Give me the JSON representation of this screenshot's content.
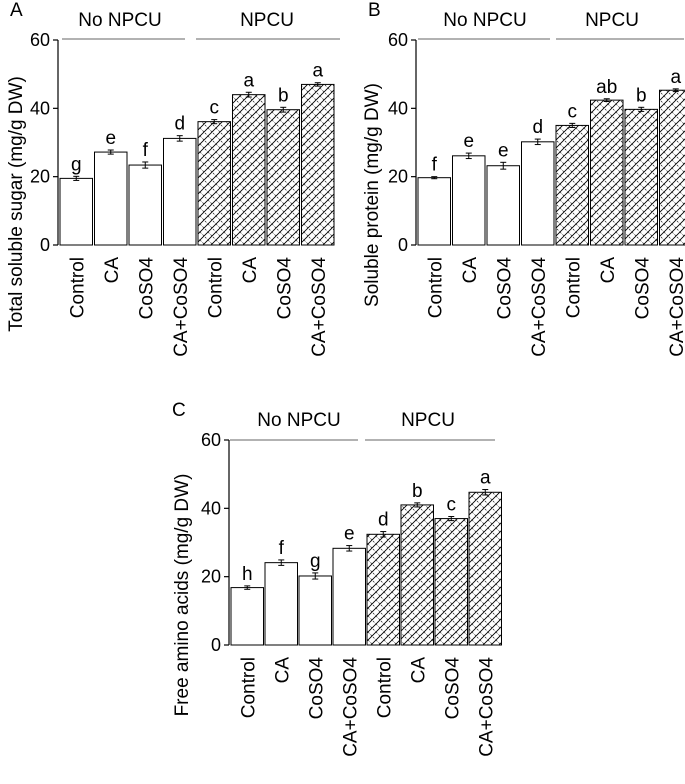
{
  "chart_data": [
    {
      "type": "bar",
      "panel": "A",
      "ylabel": "Total soluble sugar (mg/g DW)",
      "ylim": [
        0,
        60
      ],
      "yticks": [
        0,
        20,
        40,
        60
      ],
      "groups": [
        "No NPCU",
        "NPCU"
      ],
      "categories": [
        "Control",
        "CA",
        "CoSO4",
        "CA+CoSO4",
        "Control",
        "CA",
        "CoSO4",
        "CA+CoSO4"
      ],
      "values": [
        19.5,
        27.2,
        23.4,
        31.2,
        36.1,
        44.0,
        39.6,
        47.0
      ],
      "errors": [
        0.6,
        0.6,
        0.9,
        0.8,
        0.6,
        0.7,
        0.7,
        0.5
      ],
      "letters": [
        "g",
        "e",
        "f",
        "d",
        "c",
        "a",
        "b",
        "a"
      ],
      "fills": [
        "open",
        "open",
        "open",
        "open",
        "crosshatch",
        "crosshatch",
        "crosshatch",
        "crosshatch"
      ]
    },
    {
      "type": "bar",
      "panel": "B",
      "ylabel": "Soluble protein (mg/g DW)",
      "ylim": [
        0,
        60
      ],
      "yticks": [
        0,
        20,
        40,
        60
      ],
      "groups": [
        "No NPCU",
        "NPCU"
      ],
      "categories": [
        "Control",
        "CA",
        "CoSO4",
        "CA+CoSO4",
        "Control",
        "CA",
        "CoSO4",
        "CA+CoSO4"
      ],
      "values": [
        19.7,
        26.1,
        23.2,
        30.2,
        35.0,
        42.4,
        39.7,
        45.3
      ],
      "errors": [
        0.3,
        0.8,
        1.0,
        0.8,
        0.6,
        0.4,
        0.6,
        0.4
      ],
      "letters": [
        "f",
        "e",
        "e",
        "d",
        "c",
        "ab",
        "b",
        "a"
      ],
      "fills": [
        "open",
        "open",
        "open",
        "open",
        "crosshatch",
        "crosshatch",
        "crosshatch",
        "crosshatch"
      ]
    },
    {
      "type": "bar",
      "panel": "C",
      "ylabel": "Free amino acids (mg/g DW)",
      "ylim": [
        0,
        60
      ],
      "yticks": [
        0,
        20,
        40,
        60
      ],
      "groups": [
        "No NPCU",
        "NPCU"
      ],
      "categories": [
        "Control",
        "CA",
        "CoSO4",
        "CA+CoSO4",
        "Control",
        "CA",
        "CoSO4",
        "CA+CoSO4"
      ],
      "values": [
        16.8,
        24.1,
        20.2,
        28.3,
        32.4,
        41.0,
        37.0,
        44.7
      ],
      "errors": [
        0.5,
        0.8,
        0.9,
        0.8,
        0.8,
        0.6,
        0.6,
        0.8
      ],
      "letters": [
        "h",
        "f",
        "g",
        "e",
        "d",
        "b",
        "c",
        "a"
      ],
      "fills": [
        "open",
        "open",
        "open",
        "open",
        "crosshatch",
        "crosshatch",
        "crosshatch",
        "crosshatch"
      ]
    }
  ]
}
